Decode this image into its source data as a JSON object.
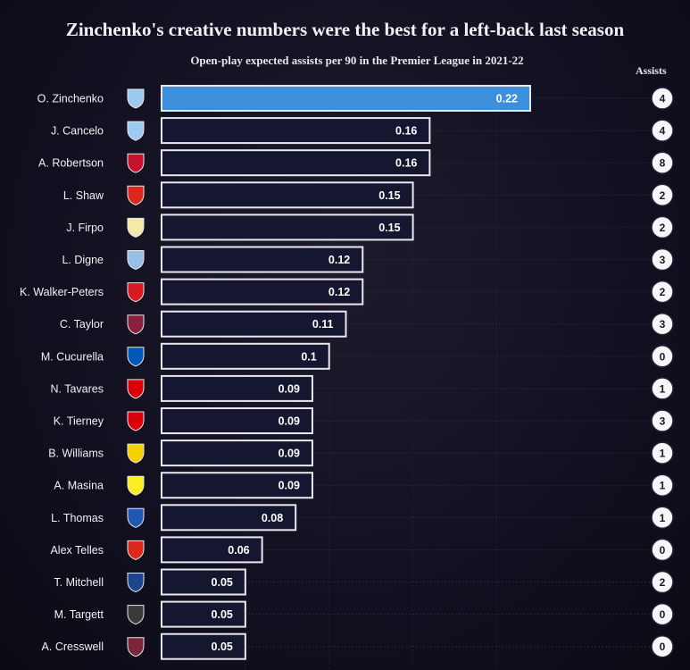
{
  "chart_data": {
    "type": "bar",
    "orientation": "horizontal",
    "title": "Zinchenko's creative numbers were the best for a left-back last season",
    "subtitle": "Open-play expected assists per 90 in the Premier League in 2021-22",
    "assists_label": "Assists",
    "categories": [
      "O. Zinchenko",
      "J. Cancelo",
      "A. Robertson",
      "L. Shaw",
      "J. Firpo",
      "L. Digne",
      "K. Walker-Peters",
      "C. Taylor",
      "M. Cucurella",
      "N. Tavares",
      "K. Tierney",
      "B. Williams",
      "A. Masina",
      "L. Thomas",
      "Alex Telles",
      "T. Mitchell",
      "M. Targett",
      "A. Cresswell"
    ],
    "values": [
      0.22,
      0.16,
      0.16,
      0.15,
      0.15,
      0.12,
      0.12,
      0.11,
      0.1,
      0.09,
      0.09,
      0.09,
      0.09,
      0.08,
      0.06,
      0.05,
      0.05,
      0.05
    ],
    "value_labels": [
      "0.22",
      "0.16",
      "0.16",
      "0.15",
      "0.15",
      "0.12",
      "0.12",
      "0.11",
      "0.1",
      "0.09",
      "0.09",
      "0.09",
      "0.09",
      "0.08",
      "0.06",
      "0.05",
      "0.05",
      "0.05"
    ],
    "assists": [
      "4",
      "4",
      "8",
      "2",
      "2",
      "3",
      "2",
      "3",
      "0",
      "1",
      "3",
      "1",
      "1",
      "1",
      "0",
      "2",
      "0",
      "0"
    ],
    "clubs": [
      "man-city",
      "man-city",
      "liverpool",
      "man-utd",
      "leeds",
      "aston-villa",
      "southampton",
      "burnley",
      "brighton",
      "arsenal",
      "arsenal",
      "norwich",
      "watford",
      "leicester",
      "man-utd",
      "crystal-palace",
      "newcastle",
      "west-ham"
    ],
    "club_colors": {
      "man-city": "#9cc9ee",
      "liverpool": "#c8102e",
      "man-utd": "#da291c",
      "leeds": "#f4e9a8",
      "aston-villa": "#95bfe5",
      "southampton": "#d71920",
      "burnley": "#8a2040",
      "brighton": "#0057b8",
      "arsenal": "#db0007",
      "norwich": "#f6d000",
      "watford": "#fbee23",
      "leicester": "#1e58b0",
      "crystal-palace": "#1b458f",
      "newcastle": "#3a3a3a",
      "west-ham": "#7a263a"
    },
    "highlight_color": "#3d8fdc",
    "bar_color": "#151630",
    "xlim": [
      0,
      0.22
    ]
  }
}
